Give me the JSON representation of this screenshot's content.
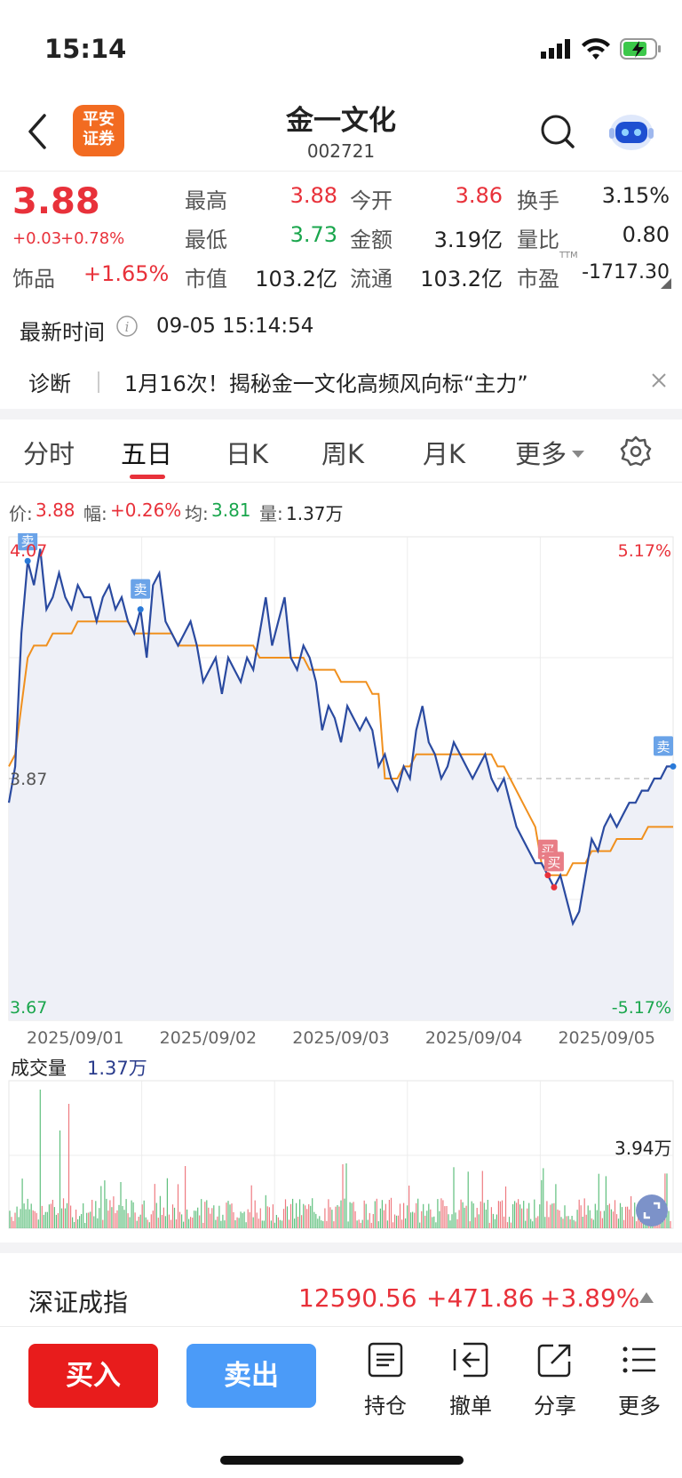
{
  "status_bar": {
    "time": "15:14"
  },
  "header": {
    "title": "金一文化",
    "code": "002721",
    "logo_text": "平安\n证券"
  },
  "quote": {
    "price": "3.88",
    "change": "+0.03",
    "change_pct": "+0.78%",
    "sector_label": "饰品",
    "sector_pct": "+1.65%",
    "high_label": "最高",
    "high": "3.88",
    "low_label": "最低",
    "low": "3.73",
    "mcap_label": "市值",
    "mcap": "103.2亿",
    "open_label": "今开",
    "open": "3.86",
    "amount_label": "金额",
    "amount": "3.19亿",
    "float_label": "流通",
    "float": "103.2亿",
    "turnover_label": "换手",
    "turnover": "3.15%",
    "vol_ratio_label": "量比",
    "vol_ratio": "0.80",
    "pe_label": "市盈",
    "pe_sup": "TTM",
    "pe": "-1717.30"
  },
  "update": {
    "label": "最新时间",
    "time": "09-05 15:14:54"
  },
  "diagnosis": {
    "label": "诊断",
    "text": "1月16次！揭秘金一文化高频风向标“主力”"
  },
  "tabs": [
    "分时",
    "五日",
    "日K",
    "周K",
    "月K",
    "更多"
  ],
  "active_tab": 1,
  "info_line": {
    "price_label": "价:",
    "price": "3.88",
    "range_label": "幅:",
    "range": "+0.26%",
    "avg_label": "均:",
    "avg": "3.81",
    "vol_label": "量:",
    "vol": "1.37万"
  },
  "chart_data": {
    "type": "line",
    "y_max_label": "4.07",
    "y_min_label": "3.67",
    "y_mid_label": "3.87",
    "pct_max_label": "5.17%",
    "pct_min_label": "-5.17%",
    "x_labels": [
      "2025/09/01",
      "2025/09/02",
      "2025/09/03",
      "2025/09/04",
      "2025/09/05"
    ],
    "ylim": [
      3.67,
      4.07
    ],
    "prev_close": 3.87,
    "series": [
      {
        "name": "价",
        "color": "#2a4aa0",
        "values": [
          3.85,
          3.88,
          3.99,
          4.05,
          4.03,
          4.06,
          4.01,
          4.02,
          4.04,
          4.02,
          4.01,
          4.03,
          4.02,
          4.02,
          4.0,
          4.02,
          4.03,
          4.01,
          4.02,
          4.0,
          3.99,
          4.01,
          3.97,
          4.03,
          4.04,
          4.0,
          3.99,
          3.98,
          3.99,
          4.0,
          3.98,
          3.95,
          3.96,
          3.97,
          3.94,
          3.97,
          3.96,
          3.95,
          3.97,
          3.96,
          3.99,
          4.02,
          3.98,
          4.0,
          4.02,
          3.97,
          3.96,
          3.98,
          3.97,
          3.95,
          3.91,
          3.93,
          3.92,
          3.9,
          3.93,
          3.92,
          3.91,
          3.92,
          3.91,
          3.88,
          3.89,
          3.87,
          3.86,
          3.88,
          3.87,
          3.91,
          3.93,
          3.9,
          3.89,
          3.87,
          3.88,
          3.9,
          3.89,
          3.88,
          3.87,
          3.88,
          3.89,
          3.87,
          3.86,
          3.87,
          3.85,
          3.83,
          3.82,
          3.81,
          3.8,
          3.8,
          3.79,
          3.78,
          3.79,
          3.77,
          3.75,
          3.76,
          3.79,
          3.82,
          3.81,
          3.83,
          3.84,
          3.83,
          3.84,
          3.85,
          3.85,
          3.86,
          3.86,
          3.87,
          3.87,
          3.88,
          3.88
        ]
      },
      {
        "name": "均",
        "color": "#f0901e",
        "values": [
          3.88,
          3.89,
          3.93,
          3.97,
          3.98,
          3.98,
          3.98,
          3.99,
          3.99,
          3.99,
          3.99,
          4.0,
          4.0,
          4.0,
          4.0,
          4.0,
          4.0,
          4.0,
          4.0,
          4.0,
          3.99,
          3.99,
          3.99,
          3.99,
          3.99,
          3.99,
          3.99,
          3.98,
          3.98,
          3.98,
          3.98,
          3.98,
          3.98,
          3.98,
          3.98,
          3.98,
          3.98,
          3.98,
          3.98,
          3.98,
          3.97,
          3.97,
          3.97,
          3.97,
          3.97,
          3.97,
          3.97,
          3.97,
          3.96,
          3.96,
          3.96,
          3.96,
          3.96,
          3.95,
          3.95,
          3.95,
          3.95,
          3.95,
          3.94,
          3.94,
          3.87,
          3.87,
          3.87,
          3.88,
          3.88,
          3.89,
          3.89,
          3.89,
          3.89,
          3.89,
          3.89,
          3.89,
          3.89,
          3.89,
          3.89,
          3.89,
          3.89,
          3.89,
          3.88,
          3.88,
          3.87,
          3.86,
          3.85,
          3.84,
          3.83,
          3.8,
          3.79,
          3.79,
          3.79,
          3.79,
          3.8,
          3.8,
          3.8,
          3.81,
          3.81,
          3.81,
          3.81,
          3.82,
          3.82,
          3.82,
          3.82,
          3.82,
          3.83,
          3.83,
          3.83,
          3.83,
          3.83
        ]
      }
    ],
    "markers": [
      {
        "type": "卖",
        "index": 3
      },
      {
        "type": "卖",
        "index": 21
      },
      {
        "type": "买",
        "index": 86
      },
      {
        "type": "买",
        "index": 87
      },
      {
        "type": "卖",
        "index": 106
      }
    ]
  },
  "volume": {
    "label": "成交量",
    "value": "1.37万",
    "max_label": "3.94万"
  },
  "index_bar": {
    "name": "深证成指",
    "value": "12590.56",
    "change": "+471.86",
    "pct": "+3.89%"
  },
  "bottom": {
    "buy": "买入",
    "sell": "卖出",
    "tools": [
      "持仓",
      "撤单",
      "分享",
      "更多"
    ]
  },
  "colors": {
    "up": "#e8313a",
    "down": "#1aa64d",
    "buy": "#e81c1c",
    "sell": "#4b9bf8",
    "price_line": "#2a4aa0",
    "avg_line": "#f0901e"
  }
}
